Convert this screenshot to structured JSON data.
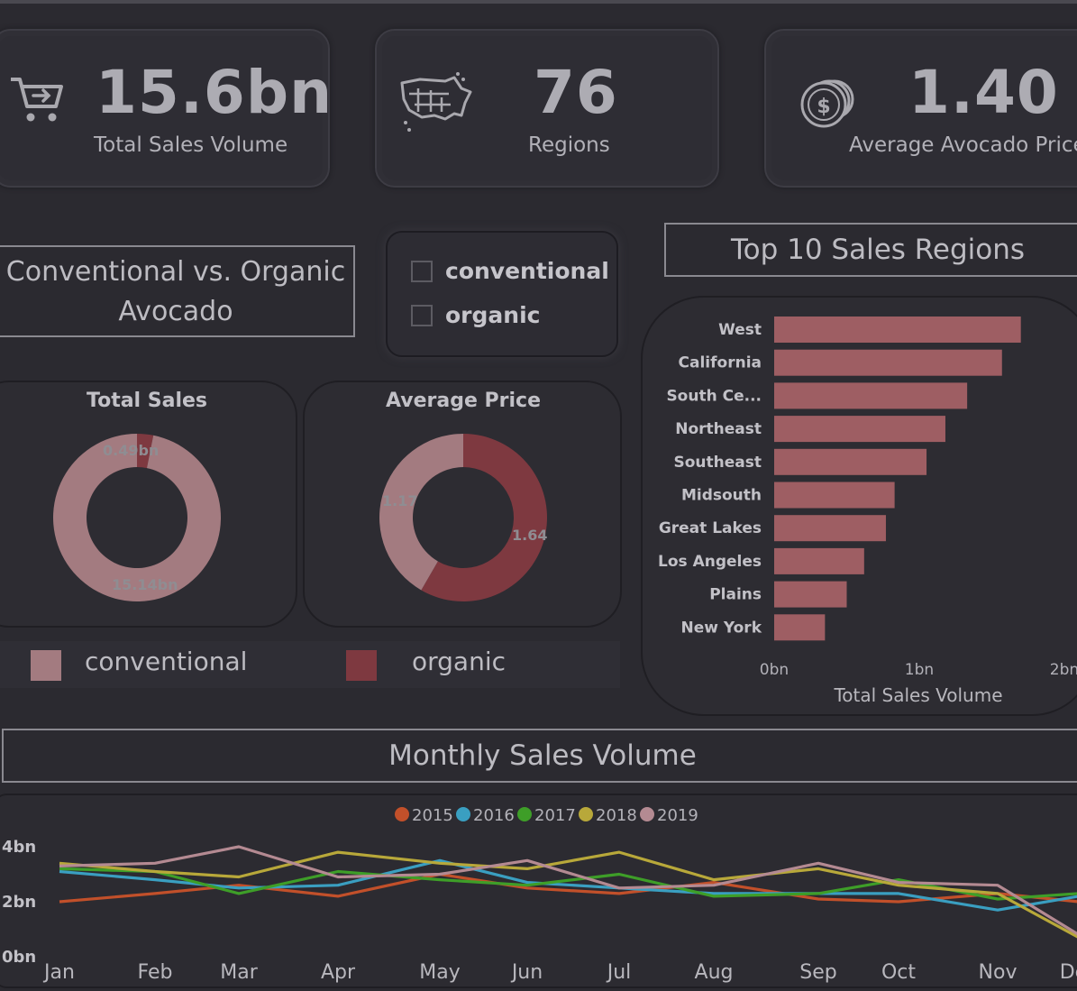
{
  "kpis": [
    {
      "value": "15.6bn",
      "label": "Total Sales Volume",
      "icon": "cart-icon"
    },
    {
      "value": "76",
      "label": "Regions",
      "icon": "us-map-icon"
    },
    {
      "value": "1.40",
      "label": "Average Avocado Price",
      "icon": "coins-icon"
    }
  ],
  "type_section": {
    "title_line1": "Conventional vs. Organic",
    "title_line2": "Avocado"
  },
  "filter": {
    "options": [
      "conventional",
      "organic"
    ]
  },
  "colors": {
    "conventional": "#a37b80",
    "organic": "#7e3940",
    "bar": "#9e5e63"
  },
  "donut_total": {
    "title": "Total Sales",
    "labels": {
      "organic": "0.49bn",
      "conventional": "15.14bn"
    },
    "chart_data": {
      "type": "pie",
      "categories": [
        "organic",
        "conventional"
      ],
      "values": [
        0.49,
        15.14
      ]
    }
  },
  "donut_price": {
    "title": "Average Price",
    "labels": {
      "organic": "1.64",
      "conventional": "1.17"
    },
    "chart_data": {
      "type": "pie",
      "categories": [
        "organic",
        "conventional"
      ],
      "values": [
        1.64,
        1.17
      ]
    }
  },
  "legend": {
    "conventional": "conventional",
    "organic": "organic"
  },
  "top_regions": {
    "title": "Top 10 Sales Regions",
    "xlabel": "Total Sales Volume",
    "ticks": [
      "0bn",
      "1bn",
      "2bn"
    ],
    "chart_data": {
      "type": "bar",
      "categories": [
        "West",
        "California",
        "South Ce...",
        "Northeast",
        "Southeast",
        "Midsouth",
        "Great Lakes",
        "Los Angeles",
        "Plains",
        "New York"
      ],
      "values": [
        1.7,
        1.57,
        1.33,
        1.18,
        1.05,
        0.83,
        0.77,
        0.62,
        0.5,
        0.35
      ],
      "xlim": [
        0,
        2
      ]
    }
  },
  "monthly": {
    "title": "Monthly Sales Volume",
    "y_ticks": [
      "0bn",
      "2bn",
      "4bn"
    ],
    "chart_data": {
      "type": "line",
      "categories": [
        "Jan",
        "Feb",
        "Mar",
        "Apr",
        "May",
        "Jun",
        "Jul",
        "Aug",
        "Sep",
        "Oct",
        "Nov",
        "Dec"
      ],
      "ylim": [
        0,
        4
      ],
      "series": [
        {
          "name": "2015",
          "color": "#c2502a",
          "values": [
            2.0,
            2.3,
            2.6,
            2.2,
            3.0,
            2.5,
            2.3,
            2.7,
            2.1,
            2.0,
            2.3,
            2.0
          ]
        },
        {
          "name": "2016",
          "color": "#3a9fc1",
          "values": [
            3.1,
            2.8,
            2.5,
            2.6,
            3.5,
            2.7,
            2.5,
            2.3,
            2.3,
            2.3,
            1.7,
            2.2
          ]
        },
        {
          "name": "2017",
          "color": "#3e9e28",
          "values": [
            3.2,
            3.1,
            2.3,
            3.1,
            2.8,
            2.6,
            3.0,
            2.2,
            2.3,
            2.8,
            2.1,
            2.3
          ]
        },
        {
          "name": "2018",
          "color": "#b8a83a",
          "values": [
            3.4,
            3.1,
            2.9,
            3.8,
            3.4,
            3.2,
            3.8,
            2.8,
            3.2,
            2.6,
            2.3,
            0.7
          ]
        },
        {
          "name": "2019",
          "color": "#b48a92",
          "values": [
            3.3,
            3.4,
            4.0,
            2.9,
            3.0,
            3.5,
            2.5,
            2.6,
            3.4,
            2.7,
            2.6,
            0.8
          ]
        }
      ]
    }
  }
}
